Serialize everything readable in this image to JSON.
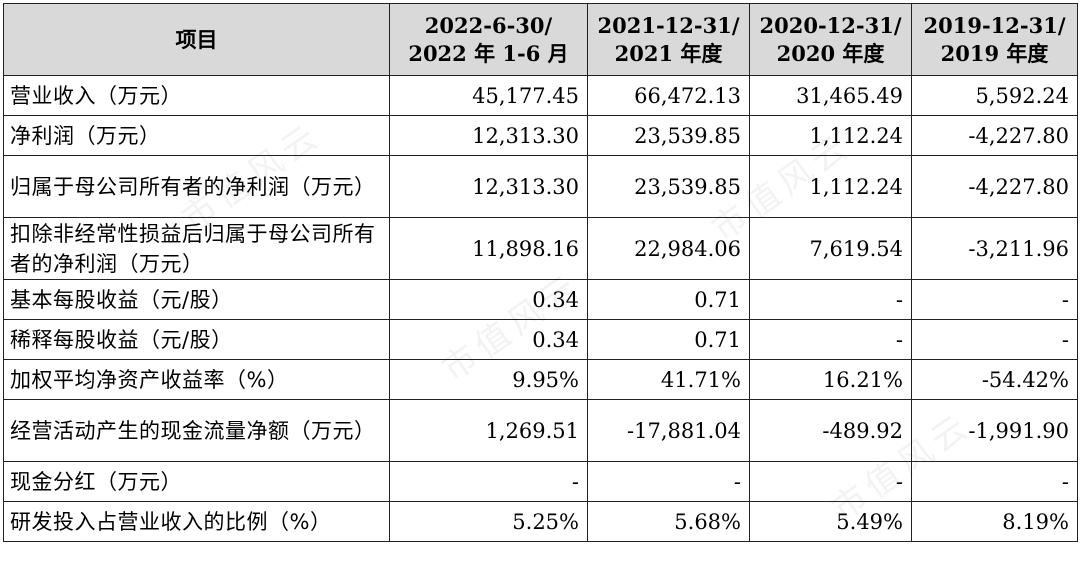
{
  "table": {
    "header": {
      "item": "项目",
      "periods": [
        {
          "line1": "2022-6-30/",
          "line2": "2022 年 1-6 月"
        },
        {
          "line1": "2021-12-31/",
          "line2": "2021 年度"
        },
        {
          "line1": "2020-12-31/",
          "line2": "2020 年度"
        },
        {
          "line1": "2019-12-31/",
          "line2": "2019 年度"
        }
      ]
    },
    "rows": [
      {
        "label": "营业收入（万元）",
        "values": [
          "45,177.45",
          "66,472.13",
          "31,465.49",
          "5,592.24"
        ]
      },
      {
        "label": "净利润（万元）",
        "values": [
          "12,313.30",
          "23,539.85",
          "1,112.24",
          "-4,227.80"
        ]
      },
      {
        "label": "归属于母公司所有者的净利润（万元）",
        "values": [
          "12,313.30",
          "23,539.85",
          "1,112.24",
          "-4,227.80"
        ]
      },
      {
        "label": "扣除非经常性损益后归属于母公司所有者的净利润（万元）",
        "values": [
          "11,898.16",
          "22,984.06",
          "7,619.54",
          "-3,211.96"
        ]
      },
      {
        "label": "基本每股收益（元/股）",
        "values": [
          "0.34",
          "0.71",
          "-",
          "-"
        ]
      },
      {
        "label": "稀释每股收益（元/股）",
        "values": [
          "0.34",
          "0.71",
          "-",
          "-"
        ]
      },
      {
        "label": "加权平均净资产收益率（%）",
        "values": [
          "9.95%",
          "41.71%",
          "16.21%",
          "-54.42%"
        ]
      },
      {
        "label": "经营活动产生的现金流量净额（万元）",
        "values": [
          "1,269.51",
          "-17,881.04",
          "-489.92",
          "-1,991.90"
        ]
      },
      {
        "label": "现金分红（万元）",
        "values": [
          "-",
          "-",
          "-",
          "-"
        ]
      },
      {
        "label": "研发投入占营业收入的比例（%）",
        "values": [
          "5.25%",
          "5.68%",
          "5.49%",
          "8.19%"
        ]
      }
    ]
  },
  "watermark": "市值风云"
}
